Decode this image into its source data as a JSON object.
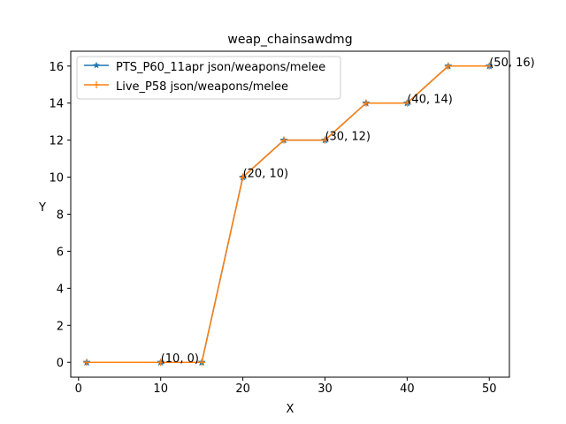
{
  "chart_data": {
    "type": "line",
    "title": "weap_chainsawdmg",
    "xlabel": "X",
    "ylabel": "Y",
    "xlim": [
      -0.95,
      52.45
    ],
    "ylim": [
      -0.8,
      16.8
    ],
    "xticks": [
      0,
      10,
      20,
      30,
      40,
      50
    ],
    "yticks": [
      0,
      2,
      4,
      6,
      8,
      10,
      12,
      14,
      16
    ],
    "grid": false,
    "legend_position": "upper-left",
    "series": [
      {
        "name": "PTS_P60_11apr json/weapons/melee",
        "color": "#1f77b4",
        "marker": "star",
        "x": [
          1,
          10,
          15,
          20,
          25,
          30,
          35,
          40,
          45,
          50
        ],
        "y": [
          0,
          0,
          0,
          10,
          12,
          12,
          14,
          14,
          16,
          16
        ]
      },
      {
        "name": "Live_P58 json/weapons/melee",
        "color": "#ff7f0e",
        "marker": "plus",
        "x": [
          1,
          10,
          15,
          20,
          25,
          30,
          35,
          40,
          45,
          50
        ],
        "y": [
          0,
          0,
          0,
          10,
          12,
          12,
          14,
          14,
          16,
          16
        ]
      }
    ],
    "annotations": [
      {
        "text": "(10, 0)",
        "x": 10,
        "y": 0
      },
      {
        "text": "(20, 10)",
        "x": 20,
        "y": 10
      },
      {
        "text": "(30, 12)",
        "x": 30,
        "y": 12
      },
      {
        "text": "(40, 14)",
        "x": 40,
        "y": 14
      },
      {
        "text": "(50, 16)",
        "x": 50,
        "y": 16
      }
    ]
  }
}
